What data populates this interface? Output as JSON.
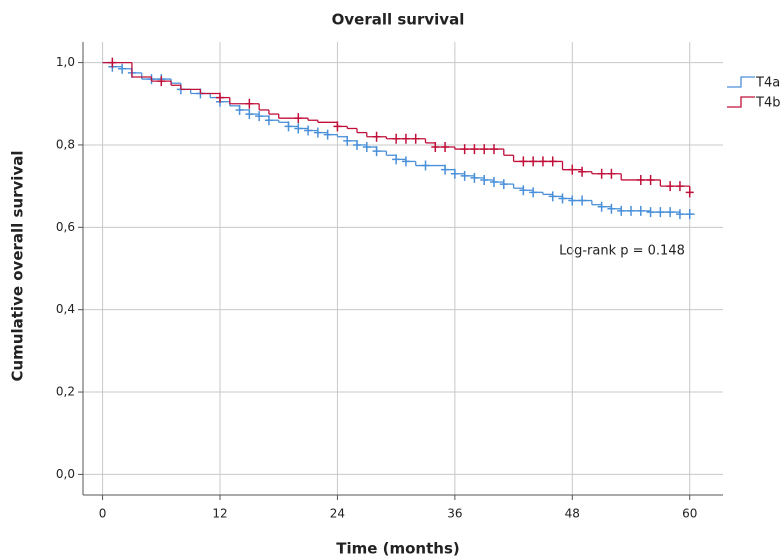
{
  "chart_data": {
    "type": "kaplan-meier",
    "title": "Overall survival",
    "x_label": "Time (months)",
    "y_label": "Cumulative overall survival",
    "annotation": "Log-rank p = 0.148",
    "xlim": [
      -2,
      63.4
    ],
    "ylim": [
      -0.05,
      1.05
    ],
    "xticks": [
      0,
      12,
      24,
      36,
      48,
      60
    ],
    "yticks": [
      {
        "value": 0,
        "label": "0,0"
      },
      {
        "value": 0.2,
        "label": "0,2"
      },
      {
        "value": 0.4,
        "label": "0,4"
      },
      {
        "value": 0.6,
        "label": "0,6"
      },
      {
        "value": 0.8,
        "label": "0,8"
      },
      {
        "value": 1.0,
        "label": "1,0"
      }
    ],
    "grid": true,
    "legend": "top-right",
    "series": [
      {
        "name": "T4a",
        "color": "#4a90d9",
        "x": [
          0,
          1,
          2,
          3,
          4,
          7,
          8,
          9,
          11,
          12,
          13,
          14,
          15,
          16,
          17,
          18,
          19,
          20,
          21,
          22,
          23,
          24,
          25,
          26,
          27,
          28,
          29,
          30,
          31,
          32,
          35,
          36,
          37,
          38,
          39,
          40,
          41,
          42,
          43,
          44,
          45,
          46,
          47,
          48,
          50,
          51,
          52,
          53,
          56,
          59,
          60.5
        ],
        "values": [
          1.0,
          0.99,
          0.985,
          0.975,
          0.96,
          0.95,
          0.935,
          0.925,
          0.915,
          0.905,
          0.895,
          0.885,
          0.875,
          0.87,
          0.86,
          0.855,
          0.845,
          0.84,
          0.835,
          0.83,
          0.825,
          0.82,
          0.81,
          0.8,
          0.795,
          0.785,
          0.775,
          0.765,
          0.76,
          0.75,
          0.74,
          0.73,
          0.725,
          0.72,
          0.715,
          0.71,
          0.705,
          0.695,
          0.69,
          0.685,
          0.68,
          0.675,
          0.67,
          0.665,
          0.655,
          0.65,
          0.645,
          0.64,
          0.637,
          0.632,
          0.632
        ],
        "censored": {
          "x": [
            1,
            2,
            3,
            5,
            6,
            8,
            10,
            12,
            14,
            15,
            16,
            17,
            19,
            20,
            21,
            22,
            23,
            25,
            26,
            27,
            28,
            30,
            31,
            33,
            35,
            36,
            37,
            38,
            39,
            40,
            41,
            43,
            44,
            46,
            47,
            48,
            49,
            51,
            52,
            53,
            54,
            55,
            56,
            57,
            58,
            59,
            60
          ],
          "y": [
            0.99,
            0.985,
            0.975,
            0.96,
            0.96,
            0.935,
            0.925,
            0.905,
            0.885,
            0.875,
            0.87,
            0.86,
            0.845,
            0.84,
            0.835,
            0.83,
            0.825,
            0.81,
            0.8,
            0.795,
            0.785,
            0.765,
            0.76,
            0.75,
            0.74,
            0.73,
            0.725,
            0.72,
            0.715,
            0.71,
            0.705,
            0.69,
            0.685,
            0.675,
            0.67,
            0.665,
            0.665,
            0.65,
            0.645,
            0.64,
            0.64,
            0.64,
            0.637,
            0.637,
            0.637,
            0.632,
            0.632
          ]
        }
      },
      {
        "name": "T4b",
        "color": "#c0103a",
        "x": [
          0,
          3,
          5,
          7,
          8,
          10,
          12,
          13,
          16,
          17,
          18,
          21,
          22,
          24,
          25,
          26,
          27,
          29,
          33,
          34,
          36,
          41,
          42,
          47,
          49,
          50,
          53,
          57,
          60,
          60.3
        ],
        "values": [
          1.0,
          0.965,
          0.955,
          0.945,
          0.935,
          0.925,
          0.915,
          0.9,
          0.885,
          0.875,
          0.865,
          0.86,
          0.855,
          0.845,
          0.84,
          0.83,
          0.82,
          0.815,
          0.805,
          0.795,
          0.79,
          0.775,
          0.76,
          0.74,
          0.735,
          0.73,
          0.715,
          0.7,
          0.685,
          0.685
        ],
        "censored": {
          "x": [
            1,
            6,
            12,
            15,
            20,
            24,
            28,
            30,
            31,
            32,
            34,
            35,
            37,
            38,
            39,
            40,
            43,
            44,
            45,
            46,
            48,
            49,
            51,
            52,
            55,
            56,
            58,
            59,
            60
          ],
          "y": [
            1.0,
            0.955,
            0.915,
            0.9,
            0.865,
            0.845,
            0.82,
            0.815,
            0.815,
            0.815,
            0.795,
            0.795,
            0.79,
            0.79,
            0.79,
            0.79,
            0.76,
            0.76,
            0.76,
            0.76,
            0.74,
            0.735,
            0.73,
            0.73,
            0.715,
            0.715,
            0.7,
            0.7,
            0.685
          ]
        }
      }
    ]
  }
}
